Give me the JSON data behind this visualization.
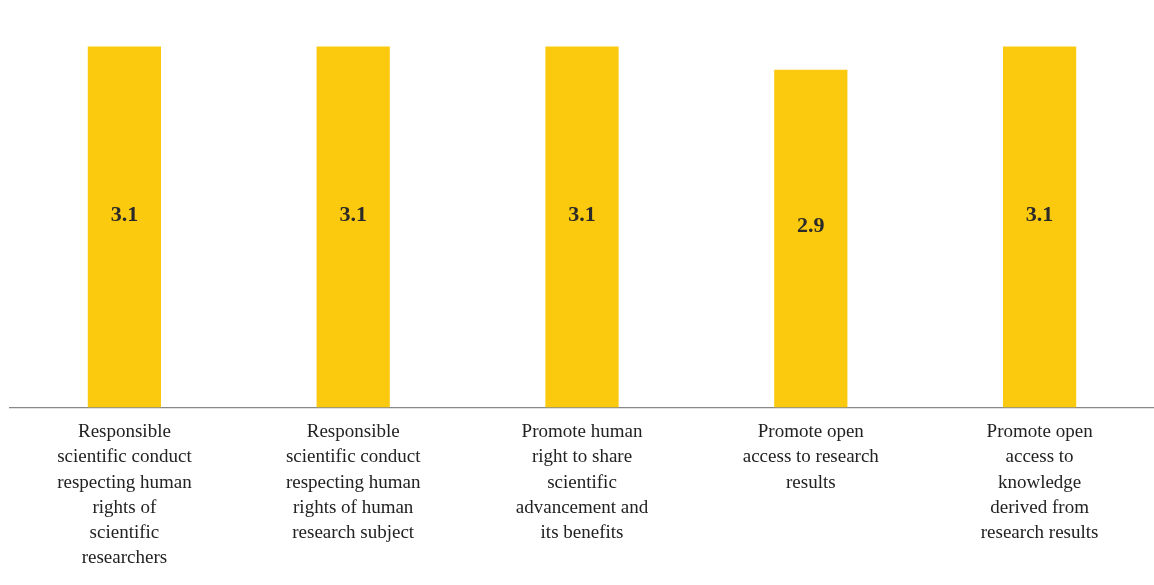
{
  "chart_data": {
    "type": "bar",
    "categories": [
      "Responsible scientific conduct respecting human rights of scientific researchers",
      "Responsible scientific conduct respecting human rights of human research subject",
      "Promote human right to share scientific advancement and its benefits",
      "Promote open access to research results",
      "Promote open access to knowledge derived from research results"
    ],
    "values": [
      3.1,
      3.1,
      3.1,
      2.9,
      3.1
    ],
    "data_labels": true,
    "color": "#fbc90d",
    "tick_labels": "x",
    "grid": false,
    "legend": false
  }
}
